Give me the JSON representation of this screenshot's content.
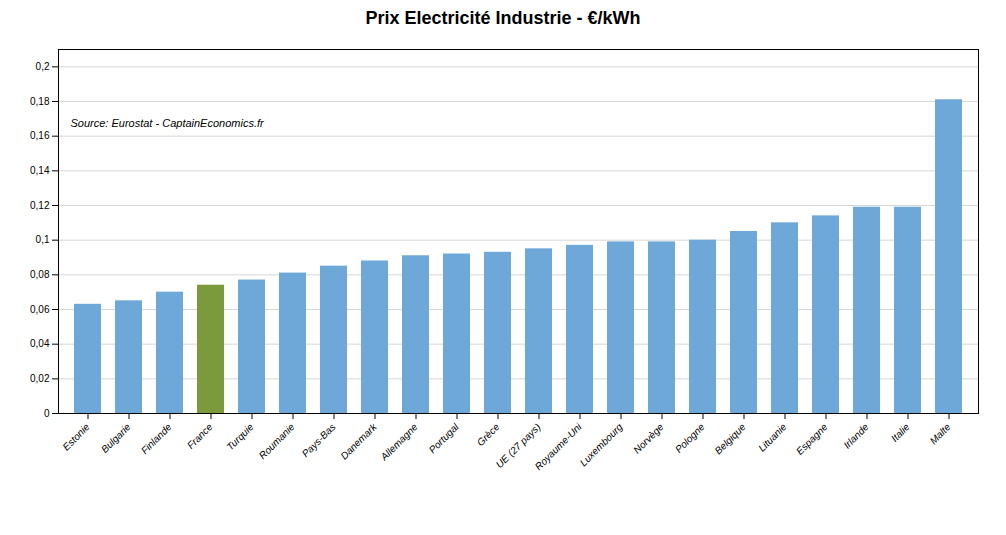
{
  "chart_data": {
    "type": "bar",
    "title": "Prix Electricité Industrie -  €/kWh",
    "annotations": [
      "Source: Eurostat - CaptainEconomics.fr"
    ],
    "categories": [
      "Estonie",
      "Bulgarie",
      "Finlande",
      "France",
      "Turquie",
      "Roumanie",
      "Pays-Bas",
      "Danemark",
      "Allemagne",
      "Portugal",
      "Grèce",
      "UE (27 pays)",
      "Royaume-Uni",
      "Luxembourg",
      "Norvège",
      "Pologne",
      "Belgique",
      "Lituanie",
      "Espagne",
      "Irlande",
      "Italie",
      "Malte"
    ],
    "values": [
      0.063,
      0.065,
      0.07,
      0.074,
      0.077,
      0.081,
      0.085,
      0.088,
      0.091,
      0.092,
      0.093,
      0.095,
      0.097,
      0.099,
      0.099,
      0.1,
      0.105,
      0.11,
      0.114,
      0.119,
      0.119,
      0.181
    ],
    "colors": [
      "#6EA8D8",
      "#6EA8D8",
      "#6EA8D8",
      "#7A9A3B",
      "#6EA8D8",
      "#6EA8D8",
      "#6EA8D8",
      "#6EA8D8",
      "#6EA8D8",
      "#6EA8D8",
      "#6EA8D8",
      "#6EA8D8",
      "#6EA8D8",
      "#6EA8D8",
      "#6EA8D8",
      "#6EA8D8",
      "#6EA8D8",
      "#6EA8D8",
      "#6EA8D8",
      "#6EA8D8",
      "#6EA8D8",
      "#6EA8D8"
    ],
    "ylim": [
      0,
      0.21
    ],
    "yticks": [
      0,
      {
        "value": 0.02,
        "label": "0,02"
      },
      {
        "value": 0.04,
        "label": "0,04"
      },
      {
        "value": 0.06,
        "label": "0,06"
      },
      {
        "value": 0.08,
        "label": "0,08"
      },
      {
        "value": 0.1,
        "label": "0,1"
      },
      {
        "value": 0.12,
        "label": "0,12"
      },
      {
        "value": 0.14,
        "label": "0,14"
      },
      {
        "value": 0.16,
        "label": "0,16"
      },
      {
        "value": 0.18,
        "label": "0,18"
      },
      {
        "value": 0.2,
        "label": "0,2"
      }
    ],
    "grid": true
  }
}
